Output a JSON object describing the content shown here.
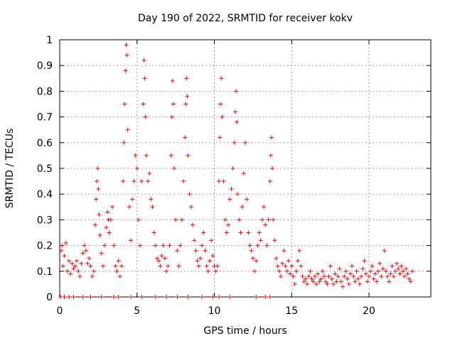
{
  "chart_data": {
    "type": "scatter",
    "title": "Day 190 of 2022, SRMTID for receiver kokv",
    "xlabel": "GPS time / hours",
    "ylabel": "SRMTID / TECUs",
    "xlim": [
      0,
      24
    ],
    "ylim": [
      0,
      1
    ],
    "x_ticks": [
      0,
      5,
      10,
      15,
      20
    ],
    "x_tick_labels": [
      "0",
      "5",
      "10",
      "15",
      "20"
    ],
    "y_ticks": [
      0,
      0.1,
      0.2,
      0.3,
      0.4,
      0.5,
      0.6,
      0.7,
      0.8,
      0.9,
      1
    ],
    "y_tick_labels": [
      "0",
      "0.1",
      "0.2",
      "0.3",
      "0.4",
      "0.5",
      "0.6",
      "0.7",
      "0.8",
      "0.9",
      "1"
    ],
    "grid": true,
    "marker": "plus",
    "color": "#ff0000",
    "series": [
      {
        "name": "SRMTID",
        "points": [
          [
            0.05,
            0.0
          ],
          [
            0.1,
            0.18
          ],
          [
            0.15,
            0.2
          ],
          [
            0.2,
            0.12
          ],
          [
            0.3,
            0.16
          ],
          [
            0.4,
            0.21
          ],
          [
            0.5,
            0.1
          ],
          [
            0.6,
            0.14
          ],
          [
            0.7,
            0.09
          ],
          [
            0.8,
            0.13
          ],
          [
            0.9,
            0.11
          ],
          [
            1.0,
            0.12
          ],
          [
            1.1,
            0.14
          ],
          [
            1.2,
            0.1
          ],
          [
            1.3,
            0.08
          ],
          [
            1.4,
            0.13
          ],
          [
            1.5,
            0.17
          ],
          [
            1.6,
            0.2
          ],
          [
            1.7,
            0.18
          ],
          [
            1.8,
            0.13
          ],
          [
            1.9,
            0.15
          ],
          [
            2.0,
            0.12
          ],
          [
            2.1,
            0.08
          ],
          [
            2.2,
            0.1
          ],
          [
            2.3,
            0.28
          ],
          [
            2.35,
            0.38
          ],
          [
            2.4,
            0.45
          ],
          [
            2.45,
            0.5
          ],
          [
            2.5,
            0.42
          ],
          [
            2.55,
            0.32
          ],
          [
            2.6,
            0.24
          ],
          [
            2.7,
            0.17
          ],
          [
            2.8,
            0.12
          ],
          [
            2.9,
            0.2
          ],
          [
            3.0,
            0.27
          ],
          [
            3.1,
            0.33
          ],
          [
            3.15,
            0.3
          ],
          [
            3.2,
            0.25
          ],
          [
            3.3,
            0.3
          ],
          [
            3.4,
            0.35
          ],
          [
            3.5,
            0.2
          ],
          [
            3.6,
            0.12
          ],
          [
            3.7,
            0.1
          ],
          [
            3.8,
            0.14
          ],
          [
            3.9,
            0.08
          ],
          [
            4.0,
            0.12
          ],
          [
            4.1,
            0.45
          ],
          [
            4.15,
            0.6
          ],
          [
            4.2,
            0.75
          ],
          [
            4.25,
            0.88
          ],
          [
            4.3,
            0.98
          ],
          [
            4.35,
            0.94
          ],
          [
            4.4,
            0.65
          ],
          [
            4.5,
            0.35
          ],
          [
            4.6,
            0.22
          ],
          [
            4.7,
            0.38
          ],
          [
            4.8,
            0.45
          ],
          [
            4.9,
            0.55
          ],
          [
            5.0,
            0.5
          ],
          [
            5.1,
            0.3
          ],
          [
            5.2,
            0.2
          ],
          [
            5.3,
            0.45
          ],
          [
            5.4,
            0.75
          ],
          [
            5.45,
            0.92
          ],
          [
            5.5,
            0.85
          ],
          [
            5.55,
            0.7
          ],
          [
            5.6,
            0.55
          ],
          [
            5.7,
            0.45
          ],
          [
            5.8,
            0.48
          ],
          [
            5.9,
            0.38
          ],
          [
            6.0,
            0.35
          ],
          [
            6.1,
            0.25
          ],
          [
            6.2,
            0.2
          ],
          [
            6.3,
            0.15
          ],
          [
            6.4,
            0.14
          ],
          [
            6.5,
            0.12
          ],
          [
            6.6,
            0.16
          ],
          [
            6.7,
            0.2
          ],
          [
            6.8,
            0.15
          ],
          [
            6.9,
            0.1
          ],
          [
            7.0,
            0.12
          ],
          [
            7.1,
            0.2
          ],
          [
            7.2,
            0.55
          ],
          [
            7.25,
            0.7
          ],
          [
            7.3,
            0.84
          ],
          [
            7.35,
            0.75
          ],
          [
            7.4,
            0.5
          ],
          [
            7.5,
            0.3
          ],
          [
            7.6,
            0.18
          ],
          [
            7.7,
            0.12
          ],
          [
            7.8,
            0.2
          ],
          [
            7.9,
            0.3
          ],
          [
            8.0,
            0.45
          ],
          [
            8.1,
            0.62
          ],
          [
            8.15,
            0.75
          ],
          [
            8.2,
            0.85
          ],
          [
            8.25,
            0.78
          ],
          [
            8.3,
            0.55
          ],
          [
            8.4,
            0.4
          ],
          [
            8.5,
            0.35
          ],
          [
            8.6,
            0.28
          ],
          [
            8.7,
            0.22
          ],
          [
            8.8,
            0.18
          ],
          [
            8.9,
            0.14
          ],
          [
            9.0,
            0.12
          ],
          [
            9.1,
            0.15
          ],
          [
            9.2,
            0.2
          ],
          [
            9.3,
            0.25
          ],
          [
            9.4,
            0.18
          ],
          [
            9.5,
            0.12
          ],
          [
            9.6,
            0.1
          ],
          [
            9.7,
            0.14
          ],
          [
            9.8,
            0.22
          ],
          [
            9.9,
            0.16
          ],
          [
            10.0,
            0.12
          ],
          [
            10.1,
            0.1
          ],
          [
            10.2,
            0.12
          ],
          [
            10.3,
            0.45
          ],
          [
            10.35,
            0.62
          ],
          [
            10.4,
            0.75
          ],
          [
            10.45,
            0.85
          ],
          [
            10.5,
            0.7
          ],
          [
            10.6,
            0.45
          ],
          [
            10.7,
            0.3
          ],
          [
            10.8,
            0.25
          ],
          [
            10.9,
            0.28
          ],
          [
            11.0,
            0.38
          ],
          [
            11.1,
            0.42
          ],
          [
            11.2,
            0.5
          ],
          [
            11.3,
            0.6
          ],
          [
            11.35,
            0.72
          ],
          [
            11.4,
            0.8
          ],
          [
            11.45,
            0.68
          ],
          [
            11.5,
            0.4
          ],
          [
            11.6,
            0.3
          ],
          [
            11.7,
            0.25
          ],
          [
            11.8,
            0.35
          ],
          [
            11.9,
            0.48
          ],
          [
            12.0,
            0.6
          ],
          [
            12.1,
            0.38
          ],
          [
            12.2,
            0.25
          ],
          [
            12.3,
            0.2
          ],
          [
            12.4,
            0.18
          ],
          [
            12.5,
            0.15
          ],
          [
            12.6,
            0.1
          ],
          [
            12.7,
            0.14
          ],
          [
            12.8,
            0.2
          ],
          [
            12.9,
            0.25
          ],
          [
            13.0,
            0.22
          ],
          [
            13.1,
            0.3
          ],
          [
            13.2,
            0.35
          ],
          [
            13.3,
            0.28
          ],
          [
            13.4,
            0.2
          ],
          [
            13.5,
            0.3
          ],
          [
            13.6,
            0.45
          ],
          [
            13.65,
            0.55
          ],
          [
            13.7,
            0.62
          ],
          [
            13.75,
            0.5
          ],
          [
            13.8,
            0.3
          ],
          [
            13.9,
            0.22
          ],
          [
            14.0,
            0.15
          ],
          [
            14.1,
            0.12
          ],
          [
            14.2,
            0.1
          ],
          [
            14.3,
            0.08
          ],
          [
            14.4,
            0.13
          ],
          [
            14.5,
            0.18
          ],
          [
            14.6,
            0.12
          ],
          [
            14.7,
            0.1
          ],
          [
            14.8,
            0.14
          ],
          [
            14.9,
            0.09
          ],
          [
            15.0,
            0.12
          ],
          [
            15.1,
            0.08
          ],
          [
            15.2,
            0.05
          ],
          [
            15.3,
            0.1
          ],
          [
            15.4,
            0.14
          ],
          [
            15.5,
            0.18
          ],
          [
            15.6,
            0.12
          ],
          [
            15.7,
            0.08
          ],
          [
            15.8,
            0.06
          ],
          [
            15.9,
            0.07
          ],
          [
            16.0,
            0.05
          ],
          [
            16.1,
            0.08
          ],
          [
            16.2,
            0.1
          ],
          [
            16.3,
            0.07
          ],
          [
            16.4,
            0.06
          ],
          [
            16.5,
            0.08
          ],
          [
            16.6,
            0.05
          ],
          [
            16.7,
            0.09
          ],
          [
            16.8,
            0.06
          ],
          [
            16.9,
            0.07
          ],
          [
            17.0,
            0.1
          ],
          [
            17.1,
            0.08
          ],
          [
            17.2,
            0.06
          ],
          [
            17.3,
            0.05
          ],
          [
            17.4,
            0.08
          ],
          [
            17.5,
            0.12
          ],
          [
            17.6,
            0.07
          ],
          [
            17.7,
            0.05
          ],
          [
            17.8,
            0.09
          ],
          [
            17.9,
            0.06
          ],
          [
            18.0,
            0.08
          ],
          [
            18.1,
            0.11
          ],
          [
            18.2,
            0.06
          ],
          [
            18.3,
            0.04
          ],
          [
            18.4,
            0.08
          ],
          [
            18.5,
            0.1
          ],
          [
            18.6,
            0.07
          ],
          [
            18.7,
            0.05
          ],
          [
            18.8,
            0.09
          ],
          [
            18.9,
            0.12
          ],
          [
            19.0,
            0.08
          ],
          [
            19.1,
            0.06
          ],
          [
            19.2,
            0.1
          ],
          [
            19.3,
            0.07
          ],
          [
            19.4,
            0.05
          ],
          [
            19.5,
            0.08
          ],
          [
            19.6,
            0.11
          ],
          [
            19.7,
            0.14
          ],
          [
            19.8,
            0.09
          ],
          [
            19.9,
            0.06
          ],
          [
            20.0,
            0.08
          ],
          [
            20.1,
            0.1
          ],
          [
            20.2,
            0.12
          ],
          [
            20.3,
            0.07
          ],
          [
            20.4,
            0.09
          ],
          [
            20.5,
            0.06
          ],
          [
            20.6,
            0.1
          ],
          [
            20.7,
            0.13
          ],
          [
            20.8,
            0.08
          ],
          [
            20.9,
            0.11
          ],
          [
            21.0,
            0.18
          ],
          [
            21.1,
            0.1
          ],
          [
            21.2,
            0.08
          ],
          [
            21.3,
            0.06
          ],
          [
            21.4,
            0.09
          ],
          [
            21.5,
            0.12
          ],
          [
            21.6,
            0.08
          ],
          [
            21.7,
            0.1
          ],
          [
            21.8,
            0.13
          ],
          [
            21.9,
            0.11
          ],
          [
            22.0,
            0.09
          ],
          [
            22.1,
            0.12
          ],
          [
            22.2,
            0.1
          ],
          [
            22.3,
            0.08
          ],
          [
            22.4,
            0.11
          ],
          [
            22.5,
            0.09
          ],
          [
            22.6,
            0.07
          ],
          [
            22.7,
            0.06
          ],
          [
            22.8,
            0.1
          ],
          [
            0.3,
            0.0
          ],
          [
            0.6,
            0.0
          ],
          [
            0.9,
            0.0
          ],
          [
            1.5,
            0.0
          ],
          [
            2.0,
            0.0
          ],
          [
            2.7,
            0.0
          ],
          [
            3.5,
            0.0
          ],
          [
            3.8,
            0.0
          ],
          [
            4.6,
            0.0
          ],
          [
            5.3,
            0.0
          ],
          [
            6.2,
            0.0
          ],
          [
            6.9,
            0.0
          ],
          [
            7.6,
            0.0
          ],
          [
            8.3,
            0.0
          ],
          [
            9.2,
            0.0
          ],
          [
            9.9,
            0.0
          ],
          [
            10.3,
            0.0
          ],
          [
            11.0,
            0.0
          ],
          [
            12.7,
            0.0
          ],
          [
            13.3,
            0.0
          ],
          [
            13.6,
            0.0
          ]
        ]
      }
    ]
  }
}
